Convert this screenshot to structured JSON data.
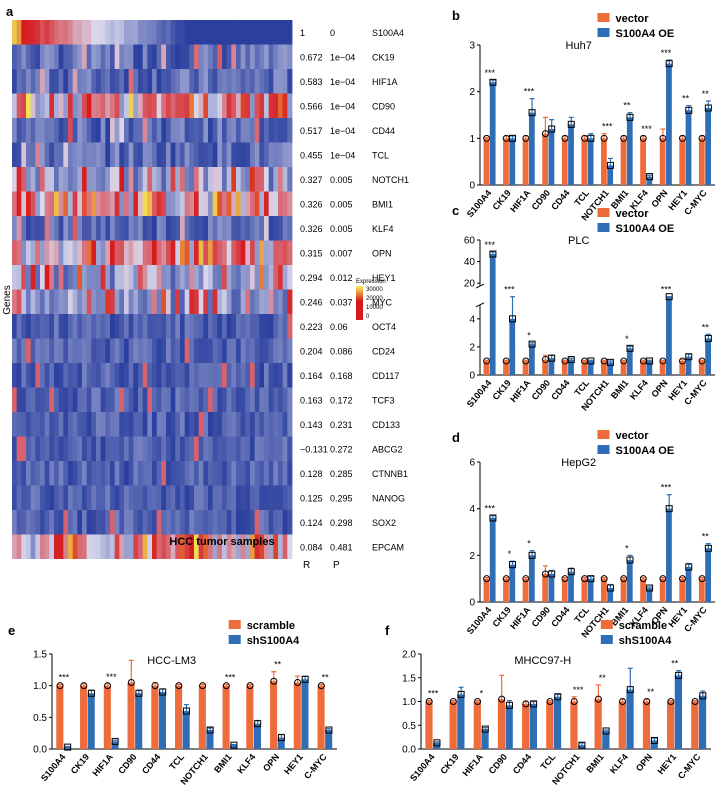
{
  "colors": {
    "vector": "#EE6B3B",
    "oe": "#2F6DB5",
    "hm_low": "#2A3F9E",
    "hm_mid": "#D9D9EE",
    "hm_high": "#D7191C",
    "hm_top": "#F3F35A"
  },
  "chart_data": [
    {
      "panel": "a",
      "type": "heatmap",
      "xlabel": "HCC tumor samples",
      "ylabel": "Genes",
      "col_headers": [
        "R",
        "P"
      ],
      "legend": {
        "title": "Expression",
        "ticks": [
          "30000",
          "20000",
          "10000",
          "0"
        ]
      },
      "rows": [
        {
          "gene": "S100A4",
          "R": "1",
          "P": "0"
        },
        {
          "gene": "CK19",
          "R": "0.672",
          "P": "1e−04"
        },
        {
          "gene": "HIF1A",
          "R": "0.583",
          "P": "1e−04"
        },
        {
          "gene": "CD90",
          "R": "0.566",
          "P": "1e−04"
        },
        {
          "gene": "CD44",
          "R": "0.517",
          "P": "1e−04"
        },
        {
          "gene": "TCL",
          "R": "0.455",
          "P": "1e−04"
        },
        {
          "gene": "NOTCH1",
          "R": "0.327",
          "P": "0.005"
        },
        {
          "gene": "BMI1",
          "R": "0.326",
          "P": "0.005"
        },
        {
          "gene": "KLF4",
          "R": "0.326",
          "P": "0.005"
        },
        {
          "gene": "OPN",
          "R": "0.315",
          "P": "0.007"
        },
        {
          "gene": "HEY1",
          "R": "0.294",
          "P": "0.012"
        },
        {
          "gene": "MYC",
          "R": "0.246",
          "P": "0.037"
        },
        {
          "gene": "OCT4",
          "R": "0.223",
          "P": "0.06"
        },
        {
          "gene": "CD24",
          "R": "0.204",
          "P": "0.086"
        },
        {
          "gene": "CD117",
          "R": "0.164",
          "P": "0.168"
        },
        {
          "gene": "TCF3",
          "R": "0.163",
          "P": "0.172"
        },
        {
          "gene": "CD133",
          "R": "0.143",
          "P": "0.231"
        },
        {
          "gene": "ABCG2",
          "R": "−0.131",
          "P": "0.272"
        },
        {
          "gene": "CTNNB1",
          "R": "0.128",
          "P": "0.285"
        },
        {
          "gene": "NANOG",
          "R": "0.125",
          "P": "0.295"
        },
        {
          "gene": "SOX2",
          "R": "0.124",
          "P": "0.298"
        },
        {
          "gene": "EPCAM",
          "R": "0.084",
          "P": "0.481"
        }
      ]
    },
    {
      "panel": "b",
      "type": "bar",
      "title": "Huh7",
      "categories": [
        "S100A4",
        "CK19",
        "HIF1A",
        "CD90",
        "CD44",
        "TCL",
        "NOTCH1",
        "BMI1",
        "KLF4",
        "OPN",
        "HEY1",
        "C-MYC"
      ],
      "series": [
        {
          "name": "vector",
          "values": [
            1,
            1,
            1,
            1.1,
            1,
            1,
            1,
            1,
            1,
            1,
            1,
            1
          ]
        },
        {
          "name": "S100A4 OE",
          "values": [
            2.2,
            1,
            1.55,
            1.2,
            1.3,
            1,
            0.42,
            1.45,
            0.18,
            2.6,
            1.6,
            1.65
          ]
        }
      ],
      "errors": [
        [
          0.02,
          0.05,
          0.05,
          0.35,
          0.05,
          0.05,
          0.1,
          0.05,
          0.05,
          0.2,
          0.05,
          0.05
        ],
        [
          0.05,
          0.05,
          0.3,
          0.2,
          0.15,
          0.1,
          0.15,
          0.1,
          0.03,
          0.08,
          0.1,
          0.15
        ]
      ],
      "significance": [
        "***",
        "",
        "***",
        "",
        "",
        "",
        "***",
        "**",
        "***",
        "***",
        "**",
        "**"
      ],
      "ylim": [
        0,
        3
      ],
      "yticks": [
        "0",
        "1",
        "2",
        "3"
      ]
    },
    {
      "panel": "c",
      "type": "bar",
      "title": "PLC",
      "broken_axis": true,
      "categories": [
        "S100A4",
        "CK19",
        "HIF1A",
        "CD90",
        "CD44",
        "TCL",
        "NOTCH1",
        "BMI1",
        "KLF4",
        "OPN",
        "HEY1",
        "C-MYC"
      ],
      "series": [
        {
          "name": "vector",
          "values": [
            1,
            1,
            1,
            1.1,
            1,
            1,
            1,
            1,
            1,
            1,
            1,
            1
          ]
        },
        {
          "name": "S100A4 OE",
          "values": [
            47,
            4,
            2.2,
            1.2,
            1.1,
            1,
            0.9,
            1.9,
            1,
            7,
            1.3,
            2.6
          ]
        }
      ],
      "errors": [
        [
          0.05,
          0.05,
          0.05,
          0.3,
          0.05,
          0.05,
          0.05,
          0.05,
          0.05,
          0.05,
          0.1,
          0.05
        ],
        [
          2,
          1.5,
          0.1,
          0.2,
          0.1,
          0.05,
          0.1,
          0.15,
          0.05,
          0.5,
          0.2,
          0.3
        ]
      ],
      "significance": [
        "***",
        "***",
        "*",
        "",
        "",
        "",
        "",
        "*",
        "",
        "***",
        "",
        "**"
      ],
      "ylim": [
        0,
        60
      ],
      "yticks": [
        "0",
        "2",
        "4",
        "20",
        "40",
        "60"
      ]
    },
    {
      "panel": "d",
      "type": "bar",
      "title": "HepG2",
      "categories": [
        "S100A4",
        "CK19",
        "HIF1A",
        "CD90",
        "CD44",
        "TCL",
        "NOTCH1",
        "BMI1",
        "KLF4",
        "OPN",
        "HEY1",
        "C-MYC"
      ],
      "series": [
        {
          "name": "vector",
          "values": [
            1,
            1,
            1,
            1.2,
            1,
            1,
            1,
            1,
            1,
            1,
            1,
            1
          ]
        },
        {
          "name": "S100A4 OE",
          "values": [
            3.6,
            1.6,
            2.0,
            1.2,
            1.3,
            1,
            0.6,
            1.8,
            0.6,
            4.0,
            1.5,
            2.3
          ]
        }
      ],
      "errors": [
        [
          0.05,
          0.05,
          0.05,
          0.35,
          0.05,
          0.05,
          0.05,
          0.05,
          0.05,
          0.05,
          0.05,
          0.05
        ],
        [
          0.1,
          0.15,
          0.2,
          0.15,
          0.15,
          0.1,
          0.15,
          0.2,
          0.05,
          0.6,
          0.15,
          0.2
        ]
      ],
      "significance": [
        "***",
        "*",
        "*",
        "",
        "",
        "",
        "",
        "*",
        "",
        "***",
        "",
        "**"
      ],
      "ylim": [
        0,
        6
      ],
      "yticks": [
        "0",
        "2",
        "4",
        "6"
      ]
    },
    {
      "panel": "e",
      "type": "bar",
      "title": "HCC-LM3",
      "categories": [
        "S100A4",
        "CK19",
        "HIF1A",
        "CD90",
        "CD44",
        "TCL",
        "NOTCH1",
        "BMI1",
        "KLF4",
        "OPN",
        "HEY1",
        "C-MYC"
      ],
      "series": [
        {
          "name": "scramble",
          "values": [
            1,
            1,
            1,
            1.05,
            1,
            1,
            1,
            1,
            1,
            1.07,
            1.05,
            1
          ]
        },
        {
          "name": "shS100A4",
          "values": [
            0.03,
            0.88,
            0.12,
            0.88,
            0.9,
            0.6,
            0.3,
            0.06,
            0.4,
            0.18,
            1.1,
            0.3
          ]
        }
      ],
      "errors": [
        [
          0.02,
          0.03,
          0.03,
          0.35,
          0.05,
          0.02,
          0.02,
          0.02,
          0.02,
          0.15,
          0.1,
          0.02
        ],
        [
          0.01,
          0.05,
          0.02,
          0.05,
          0.05,
          0.1,
          0.03,
          0.01,
          0.05,
          0.05,
          0.05,
          0.02
        ]
      ],
      "significance": [
        "***",
        "",
        "***",
        "",
        "",
        "",
        "",
        "***",
        "",
        "**",
        "",
        "**"
      ],
      "ylim": [
        0,
        1.5
      ],
      "yticks": [
        "0.0",
        "0.5",
        "1.0",
        "1.5"
      ]
    },
    {
      "panel": "f",
      "type": "bar",
      "title": "MHCC97-H",
      "categories": [
        "S100A4",
        "CK19",
        "HIF1A",
        "CD90",
        "CD44",
        "TCL",
        "NOTCH1",
        "BMI1",
        "KLF4",
        "OPN",
        "HEY1",
        "C-MYC"
      ],
      "series": [
        {
          "name": "scramble",
          "values": [
            1,
            1,
            1,
            1.05,
            0.95,
            1,
            1,
            1.05,
            1,
            1,
            1,
            1
          ]
        },
        {
          "name": "shS100A4",
          "values": [
            0.13,
            1.15,
            0.42,
            0.92,
            0.95,
            1.1,
            0.08,
            0.38,
            1.25,
            0.18,
            1.55,
            1.12
          ]
        }
      ],
      "errors": [
        [
          0.02,
          0.02,
          0.02,
          0.5,
          0.05,
          0.02,
          0.1,
          0.3,
          0.05,
          0.05,
          0.02,
          0.02
        ],
        [
          0.02,
          0.15,
          0.03,
          0.1,
          0.05,
          0.05,
          0.05,
          0.02,
          0.45,
          0.05,
          0.1,
          0.1
        ]
      ],
      "significance": [
        "***",
        "",
        "*",
        "",
        "",
        "",
        "***",
        "**",
        "",
        "**",
        "**",
        ""
      ],
      "ylim": [
        0,
        2
      ],
      "yticks": [
        "0.0",
        "0.5",
        "1.0",
        "1.5",
        "2.0"
      ]
    }
  ]
}
